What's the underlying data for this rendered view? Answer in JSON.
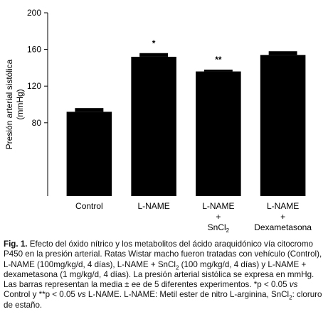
{
  "chart_data": {
    "type": "bar",
    "ylabel": [
      "Presión arterial sistólica",
      "(mmHg)"
    ],
    "categories": [
      [
        "Control"
      ],
      [
        "L-NAME"
      ],
      [
        "L-NAME",
        "+",
        [
          "SnCl",
          "2"
        ]
      ],
      [
        "L-NAME",
        "+",
        "Dexametasona"
      ]
    ],
    "values": [
      92,
      152,
      136,
      154
    ],
    "errors": [
      4,
      4,
      2,
      4
    ],
    "annotations": [
      null,
      "*",
      "**",
      null
    ],
    "color": "#000000",
    "ylim": [
      0,
      200
    ],
    "yticks": [
      80,
      120,
      160,
      200
    ],
    "grid": false
  },
  "caption": [
    "Fig. 1.",
    " Efecto del óxido nítrico y los metabolitos del ácido araquidónico vía citocromo P450 en la presión arterial. Ratas Wistar macho fueron tratadas con vehículo (Control), L-NAME (100mg/kg/d, 4 días), L-NAME + SnCl",
    "2",
    " (100 mg/kg/d, 4 días) y L-NAME + dexametasona (1 mg/kg/d, 4 días). La presión arterial sistólica se expresa en mmHg. Las barras representan la media ± ee de 5 diferentes experimentos. *p < 0.05 ",
    "vs",
    " Control y **p < 0.05 ",
    "vs",
    " L-NAME. L-NAME: Metil ester de nitro L-arginina, SnCl",
    "2",
    ": cloruro de estaño."
  ]
}
